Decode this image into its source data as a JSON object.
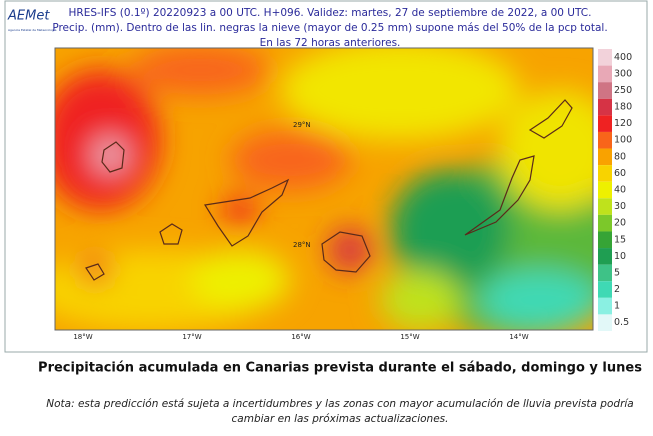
{
  "logo": {
    "name": "AEMet",
    "subtitle": "Agencia Estatal de Meteorología"
  },
  "header": {
    "lines": [
      "HRES-IFS (0.1º) 20220923 a 00 UTC.  H+096. Validez: martes, 27 de septiembre de 2022,  a  00 UTC.",
      "Precip. (mm). Dentro de las lin. negras la nieve (mayor de 0.25 mm) supone más del 50% de la pcp total.",
      "En las 72 horas anteriores."
    ]
  },
  "map": {
    "lat_labels": [
      "29°N",
      "28°N"
    ],
    "lon_labels": [
      "18°W",
      "17°W",
      "16°W",
      "15°W",
      "14°W"
    ]
  },
  "legend": [
    {
      "label": "400",
      "color": "#f2d2da"
    },
    {
      "label": "300",
      "color": "#e8a8b6"
    },
    {
      "label": "250",
      "color": "#cf7484"
    },
    {
      "label": "180",
      "color": "#d63345"
    },
    {
      "label": "120",
      "color": "#ef2222"
    },
    {
      "label": "100",
      "color": "#f8651a"
    },
    {
      "label": "80",
      "color": "#f9a200"
    },
    {
      "label": "60",
      "color": "#f8d300"
    },
    {
      "label": "40",
      "color": "#eef000"
    },
    {
      "label": "30",
      "color": "#bfe21c"
    },
    {
      "label": "20",
      "color": "#7cc82a"
    },
    {
      "label": "15",
      "color": "#36a436"
    },
    {
      "label": "10",
      "color": "#1f9e52"
    },
    {
      "label": "5",
      "color": "#3ec287"
    },
    {
      "label": "2",
      "color": "#3fd9b4"
    },
    {
      "label": "1",
      "color": "#8af0e2"
    },
    {
      "label": "0.5",
      "color": "#e2f8f8"
    }
  ],
  "caption": "Precipitación acumulada en Canarias prevista durante el sábado, domingo y lunes",
  "note": [
    "Nota: esta predicción está sujeta a incertidumbres y las zonas con mayor acumulación de lluvia prevista podría",
    "cambiar en las próximas actualizaciones."
  ]
}
